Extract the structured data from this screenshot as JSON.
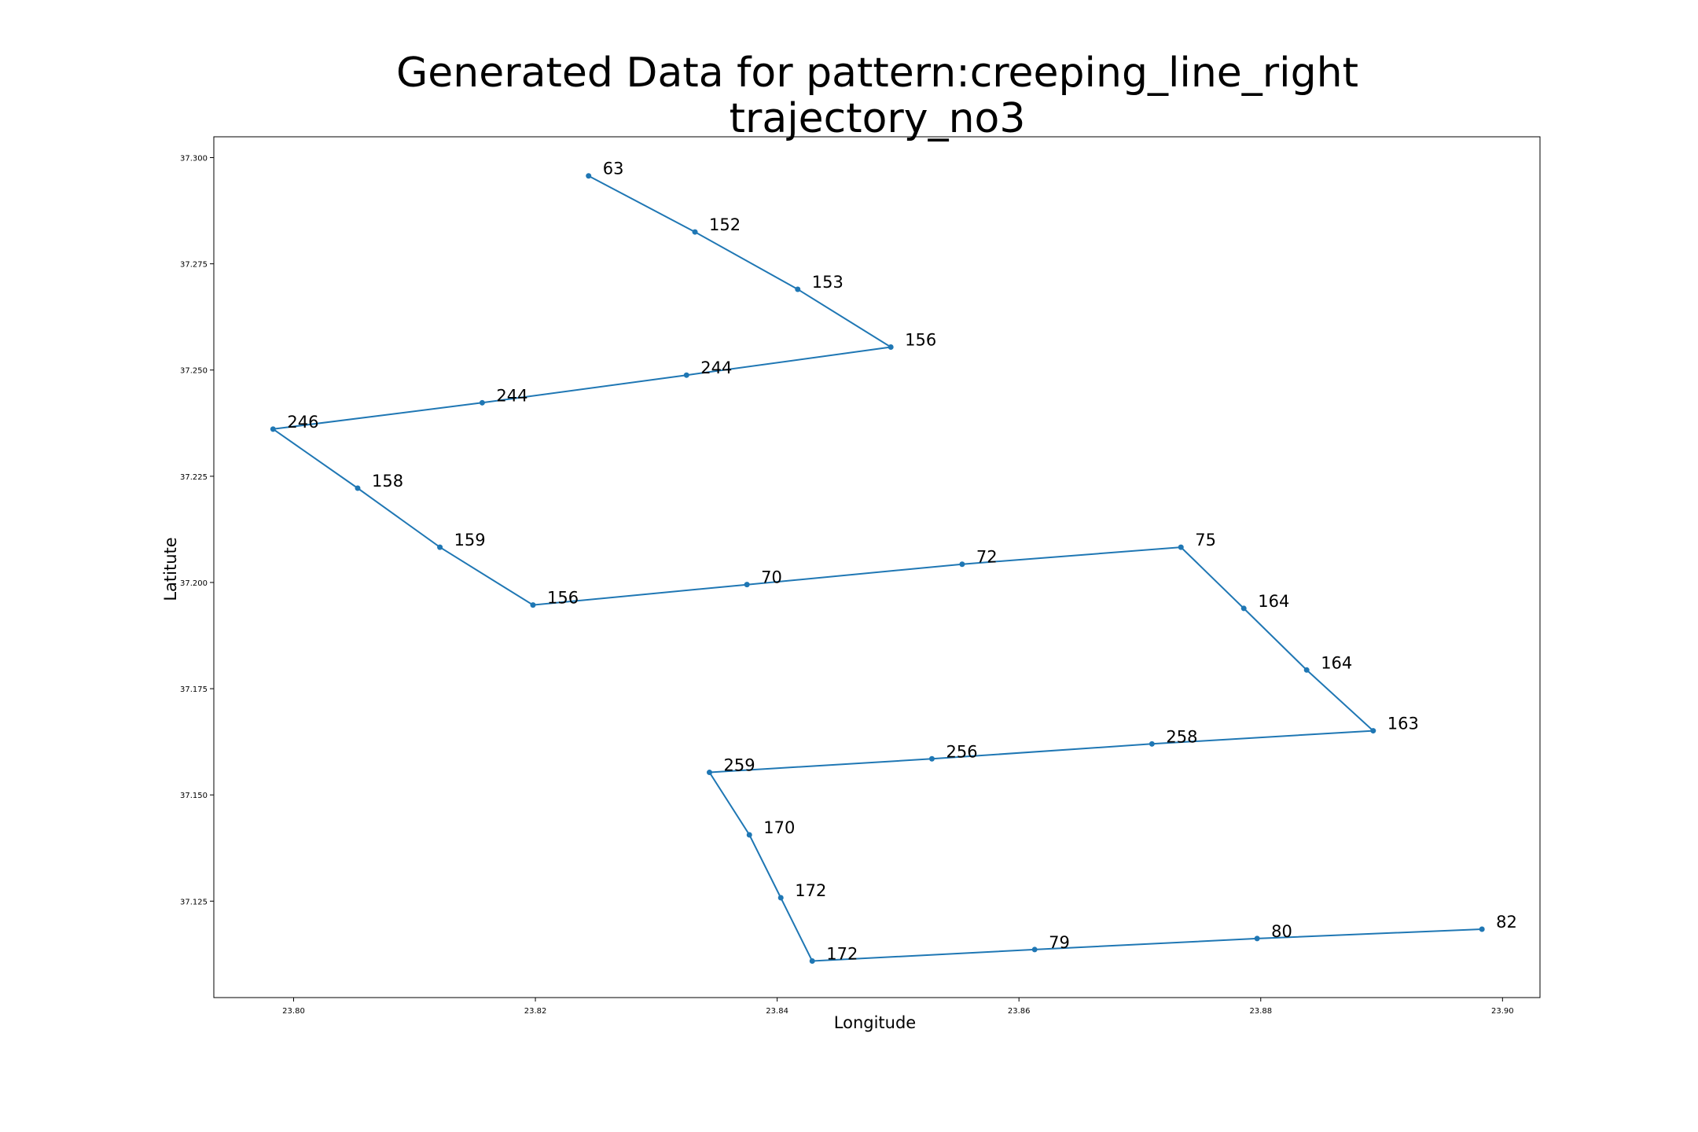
{
  "chart_data": {
    "type": "line",
    "title_line1": "Generated Data for pattern:creeping_line_right",
    "title_line2": "trajectory_no3",
    "xlabel": "Longitude",
    "ylabel": "Latitute",
    "xlim": [
      23.7934,
      23.9031
    ],
    "ylim": [
      37.1023,
      37.3049
    ],
    "xticks": [
      23.8,
      23.82,
      23.84,
      23.86,
      23.88,
      23.9
    ],
    "xtick_labels": [
      "23.80",
      "23.82",
      "23.84",
      "23.86",
      "23.88",
      "23.90"
    ],
    "yticks": [
      37.125,
      37.15,
      37.175,
      37.2,
      37.225,
      37.25,
      37.275,
      37.3
    ],
    "ytick_labels": [
      "37.125",
      "37.150",
      "37.175",
      "37.200",
      "37.225",
      "37.250",
      "37.275",
      "37.300"
    ],
    "grid": false,
    "line_color": "#1f77b4",
    "points": [
      {
        "x": 23.8244,
        "y": 37.2957,
        "label": "63"
      },
      {
        "x": 23.8332,
        "y": 37.2825,
        "label": "152"
      },
      {
        "x": 23.8417,
        "y": 37.269,
        "label": "153"
      },
      {
        "x": 23.8494,
        "y": 37.2554,
        "label": "156"
      },
      {
        "x": 23.8325,
        "y": 37.2488,
        "label": "244"
      },
      {
        "x": 23.8156,
        "y": 37.2423,
        "label": "244"
      },
      {
        "x": 23.7983,
        "y": 37.2361,
        "label": "246"
      },
      {
        "x": 23.8053,
        "y": 37.2222,
        "label": "158"
      },
      {
        "x": 23.8121,
        "y": 37.2083,
        "label": "159"
      },
      {
        "x": 23.8198,
        "y": 37.1947,
        "label": "156"
      },
      {
        "x": 23.8375,
        "y": 37.1995,
        "label": "70"
      },
      {
        "x": 23.8553,
        "y": 37.2043,
        "label": "72"
      },
      {
        "x": 23.8734,
        "y": 37.2083,
        "label": "75"
      },
      {
        "x": 23.8786,
        "y": 37.1939,
        "label": "164"
      },
      {
        "x": 23.8838,
        "y": 37.1794,
        "label": "164"
      },
      {
        "x": 23.8893,
        "y": 37.1651,
        "label": "163"
      },
      {
        "x": 23.871,
        "y": 37.162,
        "label": "258"
      },
      {
        "x": 23.8528,
        "y": 37.1585,
        "label": "256"
      },
      {
        "x": 23.8344,
        "y": 37.1553,
        "label": "259"
      },
      {
        "x": 23.8377,
        "y": 37.1406,
        "label": "170"
      },
      {
        "x": 23.8403,
        "y": 37.1258,
        "label": "172"
      },
      {
        "x": 23.8429,
        "y": 37.1109,
        "label": "172"
      },
      {
        "x": 23.8613,
        "y": 37.1136,
        "label": "79"
      },
      {
        "x": 23.8797,
        "y": 37.1162,
        "label": "80"
      },
      {
        "x": 23.8983,
        "y": 37.1184,
        "label": "82"
      }
    ]
  }
}
